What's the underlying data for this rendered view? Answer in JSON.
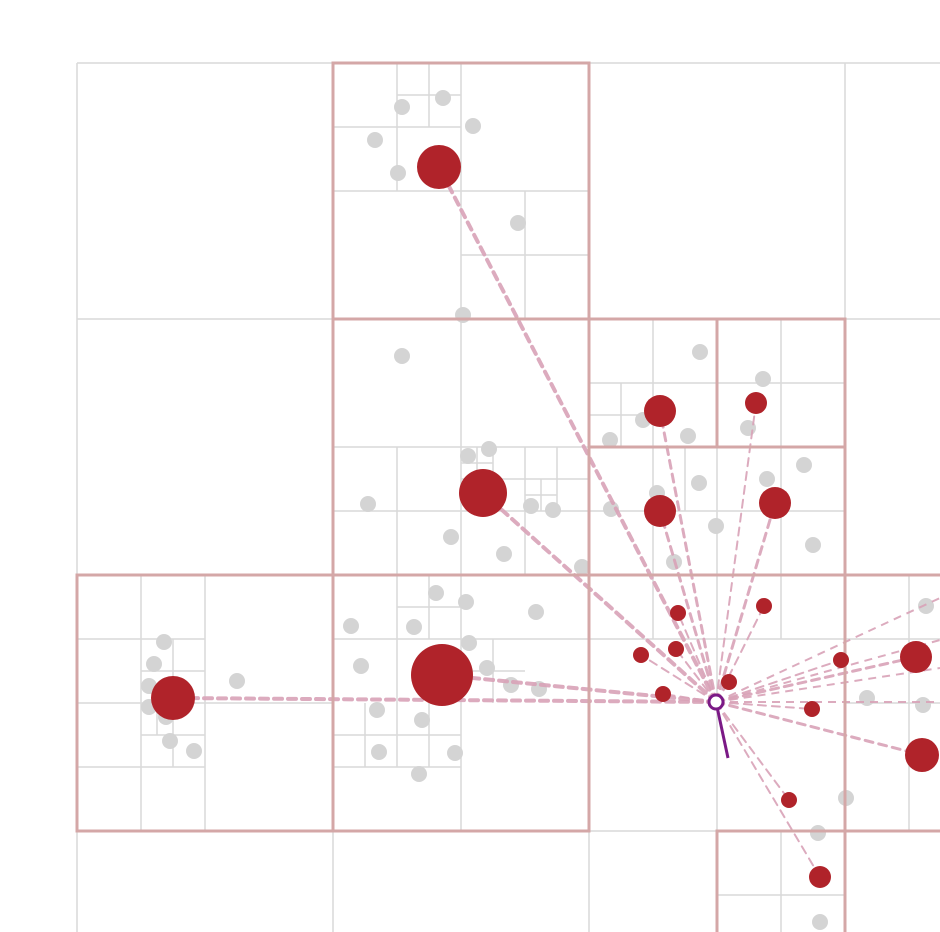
{
  "colors": {
    "background": "#ffffff",
    "grid_line": "#d9d9d9",
    "highlight_cell": "#d4a7a7",
    "faint_point": "#d4d4d4",
    "aggregate_point": "#b0232a",
    "force_line": "#d9a3b8",
    "body_marker": "#7b1a86"
  },
  "diagram": {
    "description_visible_text": "",
    "body": {
      "label": "",
      "icon": "target-body-ring"
    },
    "point_groups": [
      {
        "name": "faint-points",
        "style": "faint"
      },
      {
        "name": "aggregate-points",
        "style": "aggregate"
      }
    ]
  }
}
